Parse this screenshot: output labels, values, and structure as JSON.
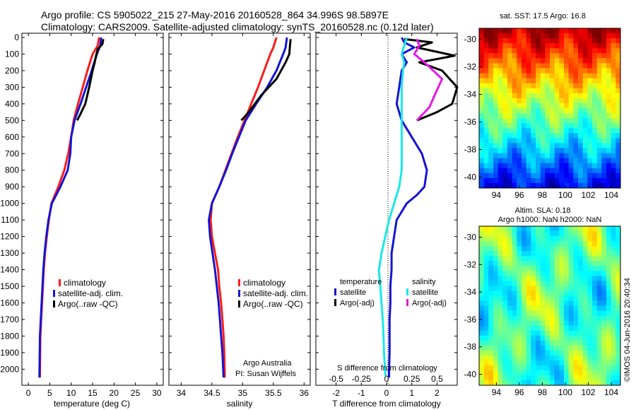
{
  "header": {
    "line1": "Argo profile: CS 5905022_215 27-May-2016 20160528_864 34.996S 98.5897E",
    "line2": "Climatology: CARS2009. Satellite-adjusted climatology: synTS_20160528.nc (0.12d later)"
  },
  "side_label": "©IMOS 04-Jun-2016 20:40:34",
  "colors": {
    "climatology": "#ff1a1a",
    "satellite": "#1414d4",
    "argo": "#000000",
    "sat_salinity": "#18e8e8",
    "argo_salinity": "#e817e8"
  },
  "legend_left": [
    "climatology",
    "satellite-adj. clim.",
    "Argo(..raw -QC)"
  ],
  "legend_mid": [
    "climatology",
    "satellite-adj. clim.",
    "Argo(..raw -QC)"
  ],
  "credit": [
    "Argo Australia",
    "PI: Susan Wijffels"
  ],
  "diff_legend": {
    "temperature_title": "temperature",
    "salinity_title": "salinity",
    "satellite": "satellite",
    "argo": "Argo(-adj)"
  },
  "sst_title": "sat. SST: 17.5 Argo: 16.8",
  "sla_title": [
    "Altim. SLA: 0.18",
    "Argo h1000: NaN h2000: NaN"
  ],
  "map_ticks": {
    "lon": [
      "94",
      "96",
      "98",
      "100",
      "102",
      "104"
    ],
    "lat": [
      "-30",
      "-32",
      "-34",
      "-36",
      "-38",
      "-40"
    ]
  },
  "chart_data": [
    {
      "type": "line",
      "xlabel": "temperature (deg C)",
      "ylabel": "",
      "xlim": [
        -1.5,
        31.5
      ],
      "ylim": [
        2060,
        0
      ],
      "xticks": [
        0,
        5,
        10,
        15,
        20,
        25,
        30
      ],
      "yticks": [
        0,
        100,
        200,
        300,
        400,
        500,
        600,
        700,
        800,
        900,
        1000,
        1100,
        1200,
        1300,
        1400,
        1500,
        1600,
        1700,
        1800,
        1900,
        2000
      ],
      "series": [
        {
          "name": "climatology",
          "color": "#ff1a1a",
          "x": [
            16.5,
            16.2,
            15.0,
            13.8,
            12.7,
            11.6,
            10.6,
            10.0,
            9.3,
            8.4,
            7.0,
            5.4,
            4.8,
            4.3,
            3.9,
            3.6,
            3.4,
            3.2,
            3.0,
            2.8,
            2.7
          ],
          "y": [
            0,
            50,
            100,
            200,
            300,
            400,
            500,
            600,
            700,
            800,
            900,
            1000,
            1100,
            1200,
            1300,
            1400,
            1500,
            1600,
            1700,
            1800,
            2050
          ]
        },
        {
          "name": "satellite-adj. clim.",
          "color": "#1414d4",
          "x": [
            17.0,
            16.8,
            16.0,
            14.8,
            13.5,
            12.2,
            10.8,
            10.0,
            9.8,
            9.2,
            7.5,
            5.5,
            4.7,
            4.2,
            3.8,
            3.5,
            3.3,
            3.1,
            2.9,
            2.7,
            2.6
          ],
          "y": [
            0,
            50,
            100,
            200,
            300,
            400,
            500,
            600,
            700,
            800,
            900,
            1000,
            1100,
            1200,
            1300,
            1400,
            1500,
            1600,
            1700,
            1800,
            2050
          ]
        },
        {
          "name": "Argo(..raw -QC)",
          "color": "#000000",
          "x": [
            17.5,
            17.3,
            16.2,
            15.9,
            15.5,
            15.0,
            14.2,
            13.3,
            12.2,
            11.4
          ],
          "y": [
            10,
            40,
            70,
            100,
            150,
            200,
            300,
            400,
            460,
            500
          ]
        }
      ]
    },
    {
      "type": "line",
      "xlabel": "salinity",
      "ylabel": "",
      "xlim": [
        33.8,
        36.1
      ],
      "ylim": [
        2060,
        0
      ],
      "xticks": [
        34,
        34.5,
        35,
        35.5,
        36
      ],
      "series": [
        {
          "name": "climatology",
          "color": "#ff1a1a",
          "x": [
            35.55,
            35.5,
            35.45,
            35.35,
            35.25,
            35.14,
            35.03,
            34.92,
            34.82,
            34.72,
            34.62,
            34.5,
            34.48,
            34.5,
            34.55,
            34.6,
            34.62,
            34.65,
            34.67,
            34.69,
            34.7,
            34.71
          ],
          "y": [
            0,
            60,
            100,
            200,
            300,
            400,
            500,
            600,
            700,
            800,
            900,
            1000,
            1100,
            1200,
            1300,
            1400,
            1500,
            1600,
            1700,
            1800,
            1900,
            2050
          ]
        },
        {
          "name": "satellite-adj. clim.",
          "color": "#1414d4",
          "x": [
            35.72,
            35.7,
            35.66,
            35.55,
            35.4,
            35.22,
            35.05,
            34.94,
            34.83,
            34.73,
            34.62,
            34.5,
            34.45,
            34.47,
            34.51,
            34.55,
            34.58,
            34.61,
            34.63,
            34.65,
            34.67,
            34.69
          ],
          "y": [
            0,
            60,
            100,
            200,
            300,
            400,
            500,
            600,
            700,
            800,
            900,
            1000,
            1100,
            1200,
            1300,
            1400,
            1500,
            1600,
            1700,
            1800,
            1900,
            2050
          ]
        },
        {
          "name": "Argo(..raw -QC)",
          "color": "#000000",
          "x": [
            35.78,
            35.77,
            35.76,
            35.7,
            35.55,
            35.3,
            35.1,
            34.98
          ],
          "y": [
            10,
            50,
            100,
            150,
            250,
            350,
            450,
            500
          ]
        }
      ]
    },
    {
      "type": "line",
      "xlabel": "T difference from climatology",
      "xlabel_top": "S difference from climatology",
      "xlim": [
        -2.8,
        2.8
      ],
      "xticks": [
        -2,
        -1,
        0,
        1,
        2
      ],
      "xticks_top": [
        "-0.5",
        "-0.25",
        "0",
        "0.25",
        "0.5"
      ],
      "ylim": [
        2060,
        0
      ],
      "series": [
        {
          "name": "temperature satellite",
          "color": "#1414d4",
          "x": [
            0.6,
            0.7,
            1.1,
            0.6,
            0.8,
            0.6,
            0.5,
            0.4,
            0.6,
            1.0,
            1.4,
            1.6,
            1.5,
            1.2,
            0.8,
            0.4,
            0.3,
            0.2,
            0.2,
            0.15,
            0.15,
            0.12,
            0.12,
            0.12,
            0.1,
            0.1
          ],
          "y": [
            0,
            30,
            60,
            100,
            150,
            200,
            300,
            400,
            500,
            600,
            700,
            800,
            900,
            950,
            1000,
            1100,
            1200,
            1300,
            1400,
            1500,
            1600,
            1700,
            1800,
            1900,
            2000,
            2050
          ]
        },
        {
          "name": "temperature Argo(-adj)",
          "color": "#000000",
          "x": [
            0.7,
            1.8,
            1.2,
            2.7,
            1.3,
            2.2,
            2.8,
            2.6,
            2.0,
            1.2
          ],
          "y": [
            10,
            30,
            60,
            110,
            150,
            200,
            300,
            400,
            450,
            500
          ]
        },
        {
          "name": "salinity satellite",
          "color": "#18e8e8",
          "x": [
            0.8,
            0.7,
            0.6,
            0.7,
            0.65,
            0.6,
            0.6,
            0.6,
            0.6,
            0.6,
            0.6,
            0.5,
            0.3,
            0.1,
            -0.05,
            -0.2,
            -0.3,
            -0.25,
            -0.2,
            -0.15,
            -0.12,
            -0.1,
            -0.08,
            -0.05,
            -0.05
          ],
          "y": [
            0,
            50,
            100,
            150,
            200,
            300,
            400,
            500,
            600,
            700,
            800,
            900,
            1000,
            1100,
            1200,
            1300,
            1400,
            1500,
            1600,
            1700,
            1800,
            1900,
            1950,
            2000,
            2040
          ]
        },
        {
          "name": "salinity Argo(-adj)",
          "color": "#e817e8",
          "x": [
            1.2,
            1.3,
            1.1,
            1.5,
            2.2,
            1.9,
            1.7,
            1.2
          ],
          "y": [
            10,
            50,
            100,
            150,
            250,
            350,
            420,
            500
          ]
        }
      ]
    },
    {
      "type": "heatmap",
      "title": "sat. SST: 17.5 Argo: 16.8",
      "xlim": [
        92.5,
        104.8
      ],
      "ylim": [
        -40.8,
        -29.2
      ],
      "xticks": [
        94,
        96,
        98,
        100,
        102,
        104
      ],
      "yticks": [
        -30,
        -32,
        -34,
        -36,
        -38,
        -40
      ],
      "colormap": "jet"
    },
    {
      "type": "heatmap",
      "title": "Altim. SLA: 0.18 / Argo h1000: NaN h2000: NaN",
      "xlim": [
        92.5,
        104.8
      ],
      "ylim": [
        -40.8,
        -29.2
      ],
      "xticks": [
        94,
        96,
        98,
        100,
        102,
        104
      ],
      "yticks": [
        -30,
        -32,
        -34,
        -36,
        -38,
        -40
      ],
      "colormap": "jet"
    }
  ]
}
